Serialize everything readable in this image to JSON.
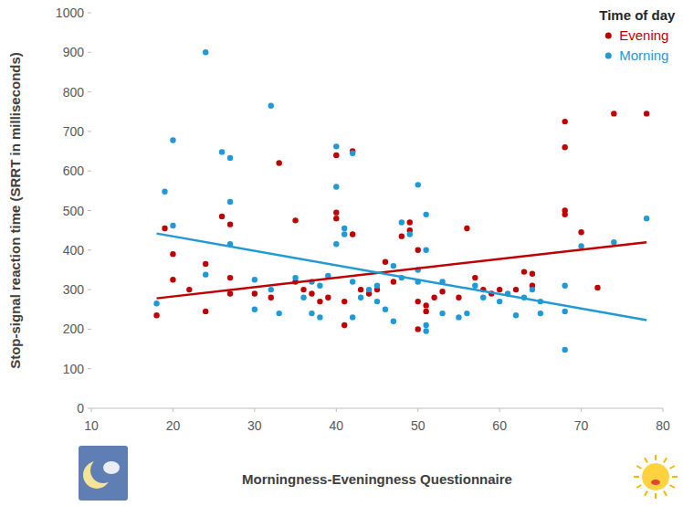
{
  "chart_data": {
    "type": "scatter",
    "x_label": "Morningness-Eveningness Questionnaire",
    "y_label": "Stop-signal reaction time (SRRT in milliseconds)",
    "legend_title": "Time of day",
    "legend": "top-right",
    "grid": false,
    "xlim": [
      10,
      80
    ],
    "xticks": [
      10,
      20,
      30,
      40,
      50,
      60,
      70,
      80
    ],
    "ylim": [
      0,
      1000
    ],
    "yticks": [
      0,
      100,
      200,
      300,
      400,
      500,
      600,
      700,
      800,
      900,
      1000
    ],
    "series": [
      {
        "name": "Evening",
        "color": "#c00000",
        "type": "scatter",
        "marker": "circle",
        "x": [
          18,
          19,
          20,
          20,
          24,
          24,
          26,
          27,
          27,
          27,
          30,
          32,
          33,
          35,
          35,
          37,
          38,
          39,
          40,
          40,
          40,
          41,
          41,
          42,
          42,
          43,
          44,
          46,
          47,
          48,
          49,
          49,
          50,
          50,
          50,
          51,
          51,
          52,
          53,
          55,
          56,
          57,
          58,
          59,
          60,
          62,
          63,
          64,
          64,
          68,
          68,
          68,
          68,
          70,
          72,
          74,
          78,
          22,
          36,
          45
        ],
        "values": [
          235,
          455,
          390,
          325,
          365,
          245,
          485,
          465,
          330,
          290,
          290,
          280,
          620,
          475,
          320,
          290,
          270,
          280,
          495,
          480,
          640,
          270,
          210,
          650,
          440,
          300,
          290,
          370,
          320,
          435,
          470,
          450,
          400,
          270,
          200,
          245,
          260,
          280,
          295,
          280,
          455,
          330,
          300,
          290,
          300,
          300,
          345,
          340,
          310,
          725,
          660,
          500,
          490,
          445,
          305,
          745,
          745,
          300,
          300,
          300
        ],
        "trend": {
          "x": [
            18,
            78
          ],
          "values": [
            278,
            420
          ]
        }
      },
      {
        "name": "Morning",
        "color": "#1f9ad6",
        "type": "scatter",
        "marker": "circle",
        "x": [
          24,
          32,
          20,
          26,
          27,
          19,
          27,
          40,
          42,
          40,
          50,
          20,
          27,
          24,
          18,
          30,
          32,
          30,
          33,
          35,
          37,
          38,
          37,
          40,
          41,
          41,
          38,
          42,
          44,
          45,
          46,
          48,
          49,
          47,
          48,
          50,
          51,
          51,
          50,
          51,
          51,
          53,
          53,
          55,
          57,
          58,
          60,
          61,
          63,
          64,
          65,
          65,
          68,
          68,
          68,
          70,
          74,
          78,
          45,
          43,
          36,
          39,
          42,
          56,
          62,
          47
        ],
        "values": [
          900,
          765,
          678,
          648,
          633,
          548,
          522,
          662,
          645,
          560,
          565,
          462,
          415,
          338,
          265,
          325,
          300,
          250,
          240,
          330,
          320,
          310,
          240,
          415,
          455,
          440,
          230,
          320,
          300,
          270,
          250,
          470,
          440,
          360,
          330,
          350,
          400,
          490,
          320,
          210,
          195,
          320,
          240,
          230,
          310,
          280,
          270,
          290,
          280,
          300,
          270,
          240,
          310,
          245,
          148,
          410,
          420,
          480,
          310,
          280,
          280,
          335,
          230,
          240,
          235,
          220
        ],
        "trend": {
          "x": [
            18,
            78
          ],
          "values": [
            442,
            223
          ]
        }
      }
    ]
  }
}
